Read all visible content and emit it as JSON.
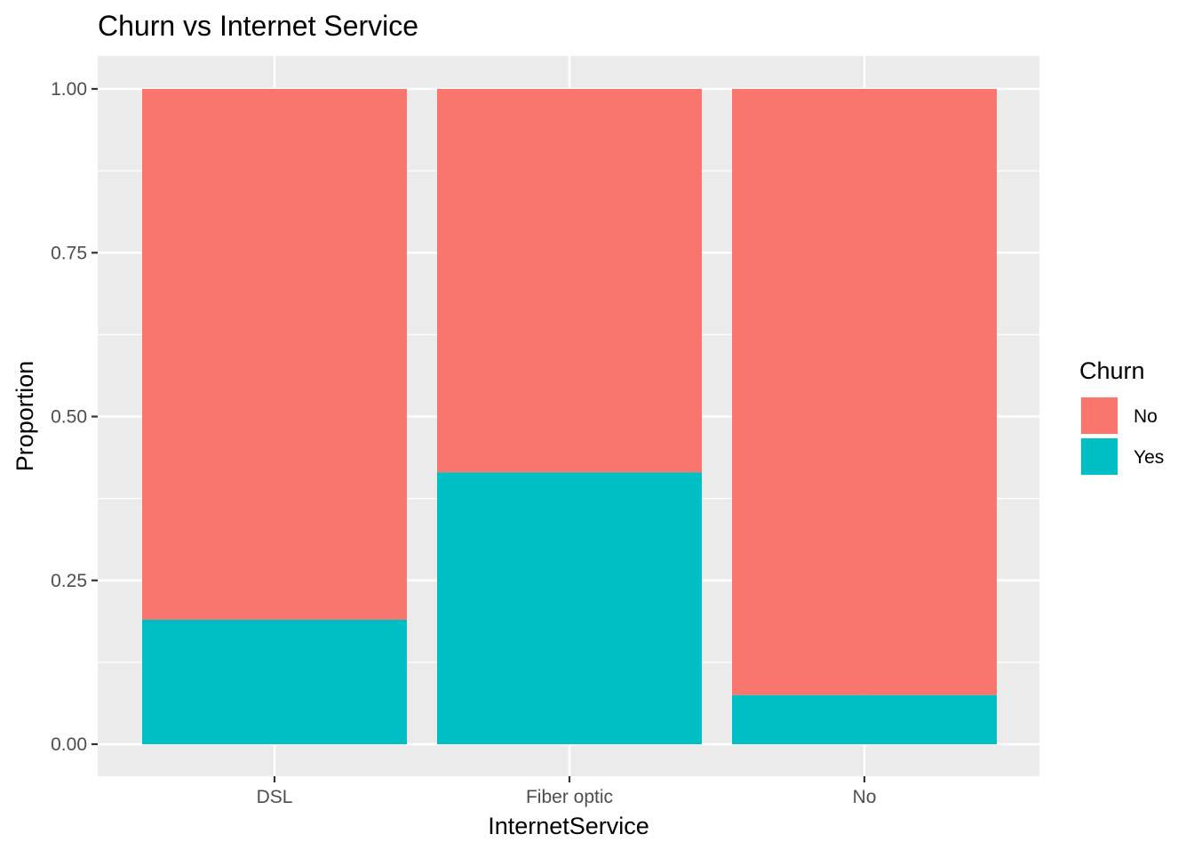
{
  "chart_data": {
    "type": "bar",
    "stacked": true,
    "title": "Churn vs Internet Service",
    "xlabel": "InternetService",
    "ylabel": "Proportion",
    "categories": [
      "DSL",
      "Fiber optic",
      "No"
    ],
    "ylim": [
      0,
      1
    ],
    "yticks": [
      "0.00",
      "0.25",
      "0.50",
      "0.75",
      "1.00"
    ],
    "ytick_values": [
      0,
      0.25,
      0.5,
      0.75,
      1.0
    ],
    "grid": true,
    "legend": {
      "title": "Churn",
      "position": "right"
    },
    "series": [
      {
        "name": "Yes",
        "color": "#00BFC4",
        "values": [
          0.19,
          0.415,
          0.075
        ]
      },
      {
        "name": "No",
        "color": "#F8766D",
        "values": [
          0.81,
          0.585,
          0.925
        ]
      }
    ],
    "legend_order": [
      "No",
      "Yes"
    ],
    "panel_background": "#EBEBEB",
    "grid_color": "#FFFFFF"
  }
}
